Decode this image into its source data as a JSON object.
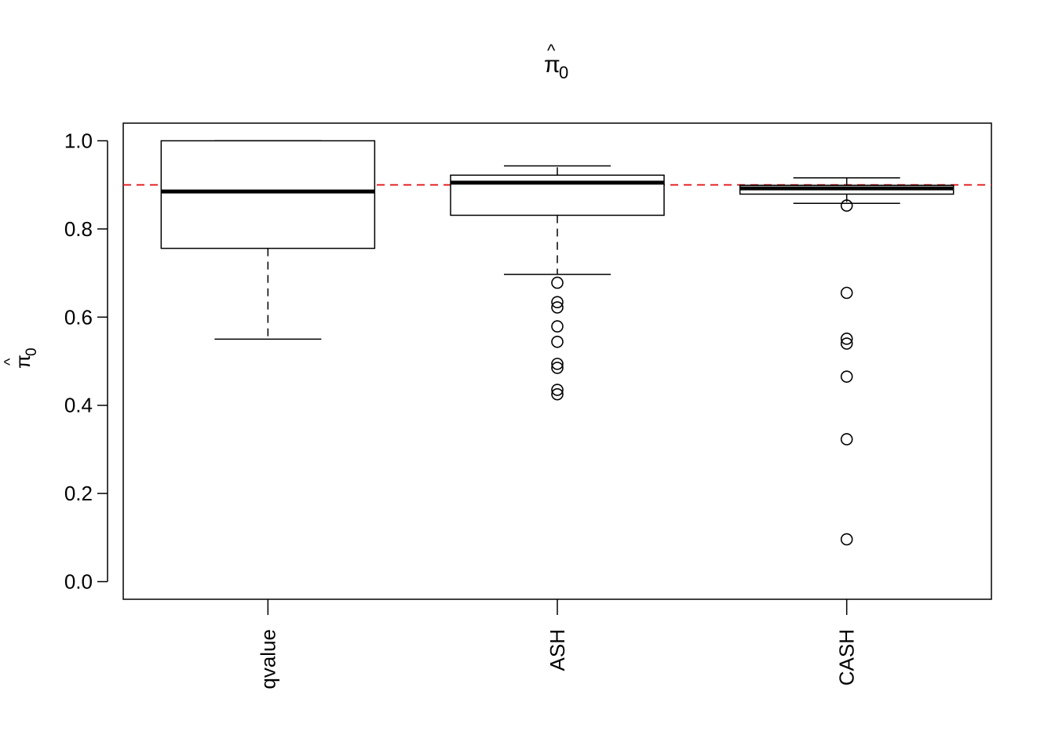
{
  "chart_data": {
    "type": "box",
    "title": "π̂0",
    "ylabel": "π̂0",
    "xlabel": "",
    "ylim": [
      -0.04,
      1.04
    ],
    "yticks": [
      "0.0",
      "0.2",
      "0.4",
      "0.6",
      "0.8",
      "1.0"
    ],
    "grid": false,
    "reference_line": {
      "y": 0.9,
      "color": "#e41a1c",
      "style": "dashed"
    },
    "categories": [
      "qvalue",
      "ASH",
      "CASH"
    ],
    "boxes": [
      {
        "name": "qvalue",
        "whisker_low": 0.55,
        "q1": 0.756,
        "median": 0.885,
        "q3": 1.0,
        "whisker_high": 1.0,
        "outliers": []
      },
      {
        "name": "ASH",
        "whisker_low": 0.697,
        "q1": 0.831,
        "median": 0.905,
        "q3": 0.922,
        "whisker_high": 0.943,
        "outliers": [
          0.678,
          0.634,
          0.622,
          0.579,
          0.544,
          0.494,
          0.485,
          0.435,
          0.425
        ]
      },
      {
        "name": "CASH",
        "whisker_low": 0.858,
        "q1": 0.879,
        "median": 0.892,
        "q3": 0.899,
        "whisker_high": 0.916,
        "outliers": [
          0.853,
          0.655,
          0.551,
          0.54,
          0.465,
          0.323,
          0.096
        ]
      }
    ]
  }
}
